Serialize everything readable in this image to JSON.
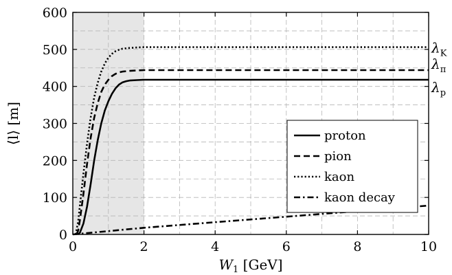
{
  "chart_data": {
    "type": "line",
    "xlabel_main": "W",
    "xlabel_sub": "1",
    "xlabel_unit": " [GeV]",
    "ylabel": "⟨l⟩ [m]",
    "xlim": [
      0,
      10
    ],
    "ylim": [
      0,
      600
    ],
    "xticks": [
      0,
      2,
      4,
      6,
      8,
      10
    ],
    "yticks": [
      0,
      100,
      200,
      300,
      400,
      500,
      600
    ],
    "grid": true,
    "shaded_region": {
      "x": [
        0,
        2
      ],
      "color": "#e6e6e6"
    },
    "legend_position": "center-right",
    "series": [
      {
        "name": "proton",
        "style": "solid",
        "end_label": "λ",
        "end_label_sub": "p",
        "x": [
          0.15,
          0.2,
          0.3,
          0.4,
          0.5,
          0.6,
          0.7,
          0.8,
          0.9,
          1.0,
          1.1,
          1.2,
          1.3,
          1.4,
          1.5,
          1.6,
          1.8,
          2.0,
          3,
          4,
          5,
          6,
          7,
          8,
          9,
          10
        ],
        "y": [
          0,
          5,
          30,
          75,
          135,
          200,
          255,
          300,
          335,
          360,
          380,
          395,
          405,
          411,
          414,
          416,
          417,
          418,
          418,
          418,
          418,
          418,
          418,
          418,
          418,
          418
        ]
      },
      {
        "name": "pion",
        "style": "dashed",
        "end_label": "λ",
        "end_label_sub": "π",
        "x": [
          0.1,
          0.15,
          0.2,
          0.3,
          0.4,
          0.5,
          0.6,
          0.7,
          0.8,
          0.9,
          1.0,
          1.1,
          1.2,
          1.3,
          1.4,
          1.6,
          1.8,
          2.0,
          3,
          4,
          5,
          6,
          7,
          8,
          9,
          10
        ],
        "y": [
          0,
          10,
          40,
          110,
          190,
          260,
          315,
          355,
          385,
          405,
          418,
          428,
          434,
          438,
          440,
          442,
          443,
          444,
          444,
          444,
          444,
          444,
          444,
          444,
          444,
          444
        ]
      },
      {
        "name": "kaon",
        "style": "dotted",
        "end_label": "λ",
        "end_label_sub": "K",
        "x": [
          0.08,
          0.15,
          0.2,
          0.3,
          0.4,
          0.5,
          0.6,
          0.7,
          0.8,
          0.9,
          1.0,
          1.1,
          1.2,
          1.3,
          1.4,
          1.6,
          1.8,
          2.0,
          3,
          4,
          5,
          6,
          7,
          8,
          9,
          10
        ],
        "y": [
          0,
          35,
          80,
          165,
          245,
          315,
          370,
          410,
          440,
          462,
          478,
          488,
          495,
          499,
          502,
          504,
          505,
          506,
          506,
          506,
          506,
          506,
          506,
          506,
          506,
          506
        ]
      },
      {
        "name": "kaon decay",
        "style": "dashdot",
        "x": [
          0,
          2,
          4,
          6,
          8,
          10
        ],
        "y": [
          0,
          18,
          33,
          48,
          63,
          78
        ]
      }
    ]
  }
}
